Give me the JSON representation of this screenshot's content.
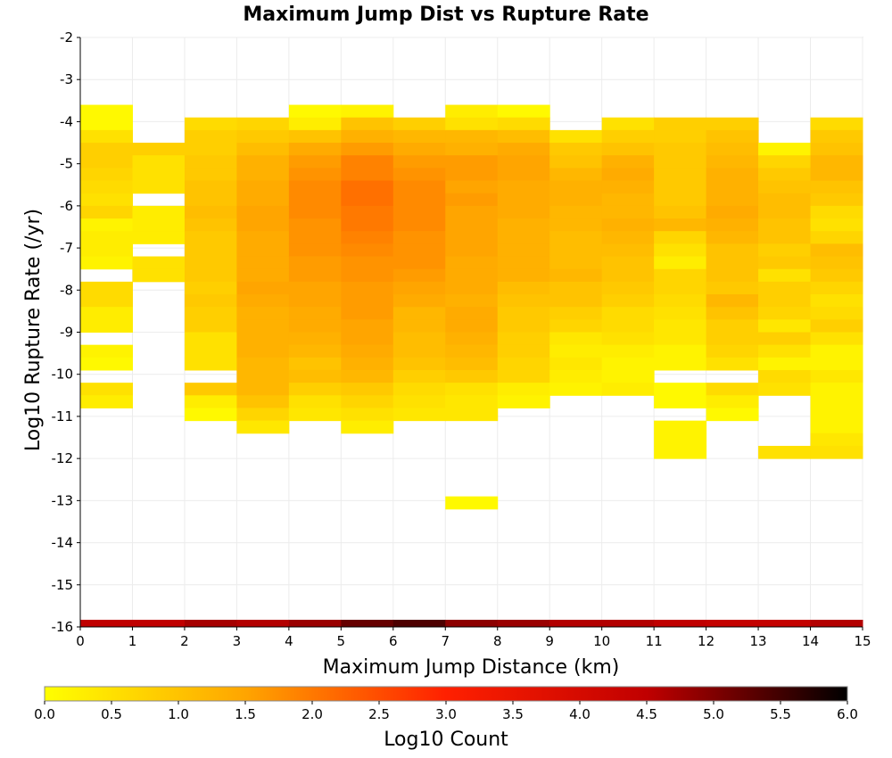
{
  "chart_data": {
    "type": "heatmap",
    "title": "Maximum Jump Dist vs Rupture Rate",
    "xlabel": "Maximum Jump Distance (km)",
    "ylabel": "Log10 Rupture Rate (/yr)",
    "xlim": [
      0,
      15
    ],
    "ylim": [
      -16,
      -2
    ],
    "x_ticks": [
      "0",
      "1",
      "2",
      "3",
      "4",
      "5",
      "6",
      "7",
      "8",
      "9",
      "10",
      "11",
      "12",
      "13",
      "14",
      "15"
    ],
    "y_ticks": [
      "-2",
      "-3",
      "-4",
      "-5",
      "-6",
      "-7",
      "-8",
      "-9",
      "-10",
      "-11",
      "-12",
      "-13",
      "-14",
      "-15",
      "-16"
    ],
    "bin_width_x": 1,
    "bin_height_y": 0.3,
    "grid": true,
    "colorbar": {
      "label": "Log10 Count",
      "min": 0.0,
      "max": 6.0,
      "ticks": [
        "0.0",
        "0.5",
        "1.0",
        "1.5",
        "2.0",
        "2.5",
        "3.0",
        "3.5",
        "4.0",
        "4.5",
        "5.0",
        "5.5",
        "6.0"
      ],
      "stops": [
        "#ffff00",
        "#ffa500",
        "#ff2000",
        "#c00000",
        "#000000"
      ]
    },
    "columns": [
      {
        "x": 0,
        "y_top": -3.6,
        "values": [
          0.1,
          0.1,
          0.5,
          0.8,
          0.8,
          0.7,
          0.6,
          0.5,
          0.7,
          0.2,
          0.3,
          0.3,
          0.2,
          null,
          0.6,
          0.6,
          0.3,
          0.3,
          null,
          0.2,
          0.1,
          null,
          0.5,
          0.3
        ]
      },
      {
        "x": 1,
        "y_top": -4.5,
        "values": [
          0.8,
          0.5,
          0.5,
          0.5,
          null,
          0.3,
          0.3,
          0.3,
          null,
          0.5,
          0.5
        ]
      },
      {
        "x": 2,
        "y_top": -3.9,
        "values": [
          0.6,
          0.8,
          0.8,
          0.9,
          0.9,
          1.0,
          1.0,
          1.1,
          1.0,
          0.9,
          0.9,
          0.9,
          0.9,
          0.8,
          0.9,
          0.8,
          0.8,
          0.5,
          0.5,
          0.5,
          null,
          0.9,
          0.3,
          0.1
        ]
      },
      {
        "x": 3,
        "y_top": -3.9,
        "values": [
          0.7,
          0.9,
          1.1,
          1.3,
          1.3,
          1.4,
          1.4,
          1.5,
          1.5,
          1.4,
          1.4,
          1.4,
          1.4,
          1.5,
          1.4,
          1.3,
          1.3,
          1.3,
          1.3,
          1.2,
          1.2,
          1.2,
          1.0,
          0.7,
          0.4
        ]
      },
      {
        "x": 4,
        "y_top": -3.6,
        "values": [
          0.1,
          0.3,
          1.0,
          1.4,
          1.6,
          1.7,
          1.8,
          1.8,
          1.8,
          1.7,
          1.7,
          1.7,
          1.6,
          1.6,
          1.5,
          1.5,
          1.4,
          1.4,
          1.3,
          1.2,
          1.0,
          1.1,
          0.8,
          0.5,
          0.4
        ]
      },
      {
        "x": 5,
        "y_top": -3.6,
        "values": [
          0.2,
          1.0,
          1.3,
          1.6,
          1.9,
          1.9,
          2.1,
          2.1,
          2.0,
          2.0,
          1.9,
          1.8,
          1.7,
          1.7,
          1.6,
          1.6,
          1.6,
          1.5,
          1.5,
          1.4,
          1.3,
          1.2,
          0.9,
          0.7,
          0.5,
          0.3
        ]
      },
      {
        "x": 6,
        "y_top": -3.9,
        "values": [
          0.8,
          1.2,
          1.4,
          1.6,
          1.7,
          1.8,
          1.8,
          1.8,
          1.8,
          1.7,
          1.7,
          1.7,
          1.6,
          1.5,
          1.4,
          1.2,
          1.2,
          1.1,
          1.1,
          1.0,
          0.8,
          0.6,
          0.5,
          0.4
        ]
      },
      {
        "x": 7,
        "y_top": -3.6,
        "values": [
          0.3,
          0.5,
          1.2,
          1.3,
          1.6,
          1.6,
          1.5,
          1.6,
          1.5,
          1.5,
          1.5,
          1.5,
          1.4,
          1.4,
          1.4,
          1.3,
          1.4,
          1.4,
          1.3,
          1.2,
          1.1,
          0.9,
          0.5,
          0.4,
          0.4,
          null,
          null,
          null,
          null,
          null,
          null,
          0.1
        ]
      },
      {
        "x": 8,
        "y_top": -3.6,
        "values": [
          0.1,
          0.6,
          1.1,
          1.4,
          1.5,
          1.5,
          1.4,
          1.4,
          1.4,
          1.3,
          1.3,
          1.3,
          1.3,
          1.3,
          1.1,
          1.0,
          0.9,
          0.9,
          0.8,
          0.8,
          0.7,
          0.7,
          0.3,
          0.2
        ]
      },
      {
        "x": 9,
        "y_top": -4.2,
        "values": [
          0.5,
          0.9,
          1.0,
          1.2,
          1.3,
          1.3,
          1.2,
          1.2,
          1.1,
          1.1,
          1.1,
          1.2,
          1.0,
          1.0,
          0.8,
          0.7,
          0.4,
          0.3,
          0.4,
          0.3,
          0.2
        ]
      },
      {
        "x": 10,
        "y_top": -3.9,
        "values": [
          0.5,
          0.8,
          1.0,
          1.3,
          1.4,
          1.3,
          1.2,
          1.2,
          1.3,
          1.2,
          1.1,
          1.0,
          1.0,
          0.9,
          0.8,
          0.6,
          0.6,
          0.5,
          0.3,
          0.2,
          0.2,
          0.3
        ]
      },
      {
        "x": 11,
        "y_top": -3.9,
        "values": [
          0.8,
          0.8,
          0.9,
          0.9,
          0.9,
          0.9,
          0.9,
          1.0,
          1.2,
          0.7,
          0.5,
          0.3,
          0.7,
          0.7,
          0.6,
          0.5,
          0.4,
          0.4,
          0.2,
          0.2,
          null,
          0.1,
          0.1,
          null,
          0.2,
          0.2,
          0.2
        ]
      },
      {
        "x": 12,
        "y_top": -3.9,
        "values": [
          0.8,
          1.0,
          1.1,
          1.2,
          1.3,
          1.3,
          1.3,
          1.4,
          1.3,
          1.2,
          1.0,
          1.0,
          1.0,
          0.9,
          1.2,
          1.0,
          0.8,
          0.8,
          0.7,
          0.5,
          null,
          0.6,
          0.3,
          0.1
        ]
      },
      {
        "x": 13,
        "y_top": -4.5,
        "values": [
          0.2,
          0.7,
          0.9,
          1.0,
          1.1,
          1.1,
          1.0,
          1.0,
          0.8,
          0.9,
          0.5,
          0.8,
          0.8,
          0.7,
          0.4,
          0.8,
          0.5,
          0.2,
          0.6,
          0.5,
          null,
          null,
          null,
          null,
          0.5
        ]
      },
      {
        "x": 14,
        "y_top": -3.9,
        "values": [
          0.6,
          0.9,
          1.0,
          1.2,
          1.2,
          1.0,
          0.9,
          0.6,
          0.5,
          0.7,
          1.1,
          1.0,
          0.9,
          0.7,
          0.5,
          0.6,
          0.8,
          0.5,
          0.2,
          0.2,
          0.4,
          0.2,
          0.2,
          0.2,
          0.2,
          0.4,
          0.5
        ]
      }
    ],
    "bottom_row": {
      "y": -16,
      "values": [
        4.5,
        4.5,
        4.7,
        4.6,
        4.8,
        5.2,
        5.4,
        4.9,
        4.8,
        4.6,
        4.6,
        4.5,
        4.4,
        4.4,
        4.6
      ]
    }
  }
}
